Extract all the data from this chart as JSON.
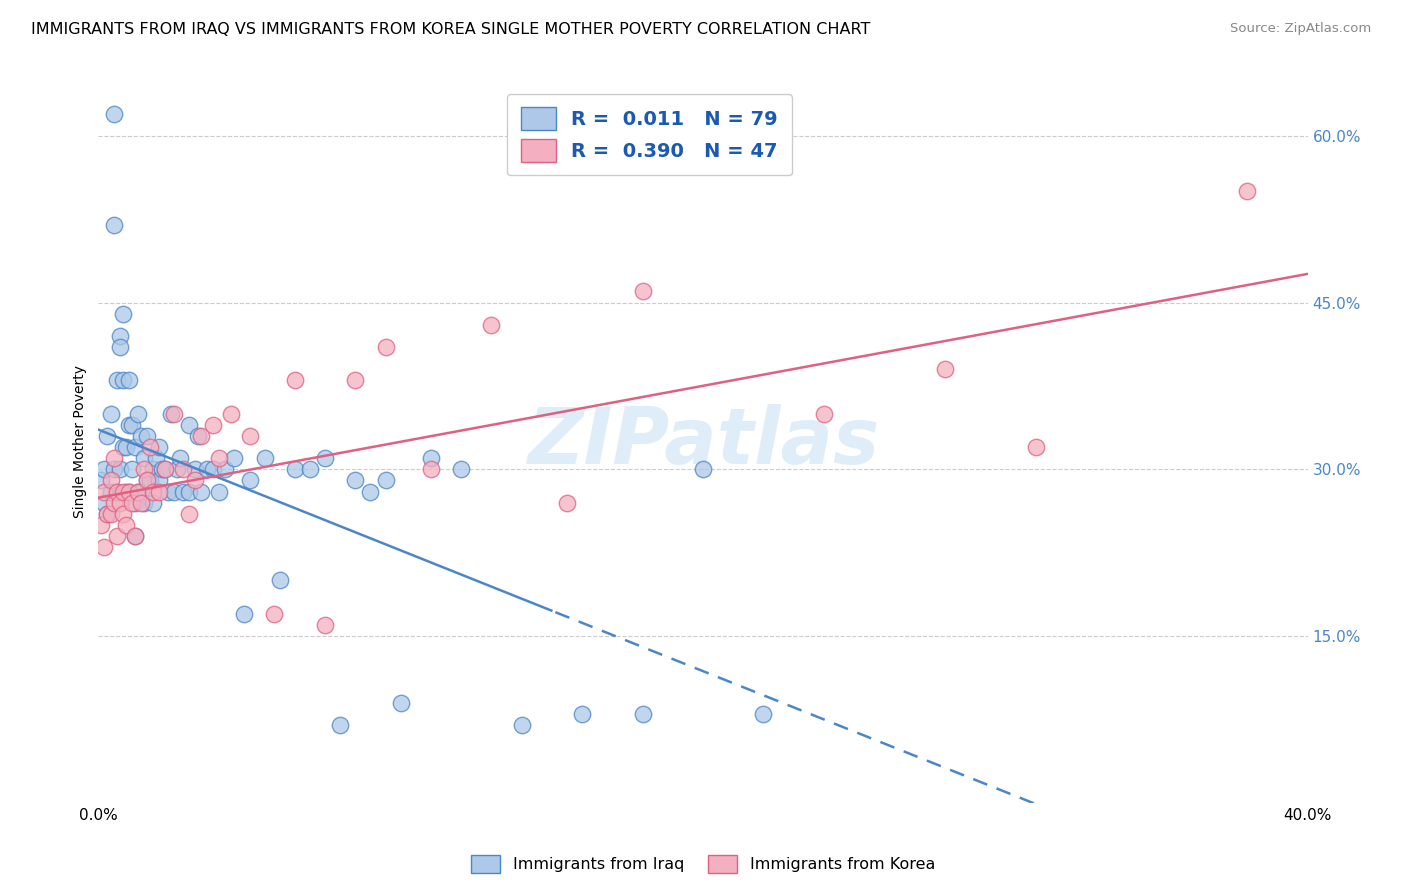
{
  "title": "IMMIGRANTS FROM IRAQ VS IMMIGRANTS FROM KOREA SINGLE MOTHER POVERTY CORRELATION CHART",
  "source": "Source: ZipAtlas.com",
  "ylabel": "Single Mother Poverty",
  "legend_iraq": "Immigrants from Iraq",
  "legend_korea": "Immigrants from Korea",
  "R_iraq": "0.011",
  "N_iraq": "79",
  "R_korea": "0.390",
  "N_korea": "47",
  "color_iraq": "#adc8e8",
  "color_iraq_line": "#4a86c8",
  "color_korea": "#f4b0c0",
  "color_korea_line": "#e06080",
  "color_legend_text": "#1a5ab0",
  "watermark": "ZIPatlas",
  "iraq_x": [
    0.001,
    0.002,
    0.002,
    0.003,
    0.003,
    0.004,
    0.004,
    0.005,
    0.005,
    0.005,
    0.006,
    0.006,
    0.007,
    0.007,
    0.007,
    0.008,
    0.008,
    0.008,
    0.009,
    0.009,
    0.01,
    0.01,
    0.01,
    0.011,
    0.011,
    0.012,
    0.012,
    0.012,
    0.013,
    0.013,
    0.014,
    0.014,
    0.015,
    0.015,
    0.016,
    0.016,
    0.017,
    0.018,
    0.018,
    0.019,
    0.02,
    0.02,
    0.021,
    0.022,
    0.023,
    0.024,
    0.025,
    0.026,
    0.027,
    0.028,
    0.03,
    0.03,
    0.032,
    0.033,
    0.034,
    0.036,
    0.038,
    0.04,
    0.042,
    0.045,
    0.048,
    0.05,
    0.055,
    0.06,
    0.065,
    0.07,
    0.075,
    0.08,
    0.085,
    0.09,
    0.095,
    0.1,
    0.11,
    0.12,
    0.14,
    0.16,
    0.18,
    0.2,
    0.22
  ],
  "iraq_y": [
    0.29,
    0.3,
    0.27,
    0.33,
    0.26,
    0.35,
    0.28,
    0.62,
    0.52,
    0.3,
    0.38,
    0.28,
    0.42,
    0.41,
    0.3,
    0.44,
    0.38,
    0.32,
    0.32,
    0.28,
    0.38,
    0.34,
    0.28,
    0.34,
    0.3,
    0.32,
    0.27,
    0.24,
    0.35,
    0.28,
    0.33,
    0.28,
    0.31,
    0.27,
    0.33,
    0.29,
    0.29,
    0.3,
    0.27,
    0.31,
    0.32,
    0.29,
    0.3,
    0.3,
    0.28,
    0.35,
    0.28,
    0.3,
    0.31,
    0.28,
    0.34,
    0.28,
    0.3,
    0.33,
    0.28,
    0.3,
    0.3,
    0.28,
    0.3,
    0.31,
    0.17,
    0.29,
    0.31,
    0.2,
    0.3,
    0.3,
    0.31,
    0.07,
    0.29,
    0.28,
    0.29,
    0.09,
    0.31,
    0.3,
    0.07,
    0.08,
    0.08,
    0.3,
    0.08
  ],
  "korea_x": [
    0.001,
    0.002,
    0.002,
    0.003,
    0.004,
    0.004,
    0.005,
    0.005,
    0.006,
    0.006,
    0.007,
    0.008,
    0.008,
    0.009,
    0.01,
    0.011,
    0.012,
    0.013,
    0.014,
    0.015,
    0.016,
    0.017,
    0.018,
    0.02,
    0.022,
    0.025,
    0.028,
    0.03,
    0.032,
    0.034,
    0.038,
    0.04,
    0.044,
    0.05,
    0.058,
    0.065,
    0.075,
    0.085,
    0.095,
    0.11,
    0.13,
    0.155,
    0.18,
    0.24,
    0.28,
    0.31,
    0.38
  ],
  "korea_y": [
    0.25,
    0.23,
    0.28,
    0.26,
    0.26,
    0.29,
    0.27,
    0.31,
    0.24,
    0.28,
    0.27,
    0.26,
    0.28,
    0.25,
    0.28,
    0.27,
    0.24,
    0.28,
    0.27,
    0.3,
    0.29,
    0.32,
    0.28,
    0.28,
    0.3,
    0.35,
    0.3,
    0.26,
    0.29,
    0.33,
    0.34,
    0.31,
    0.35,
    0.33,
    0.17,
    0.38,
    0.16,
    0.38,
    0.41,
    0.3,
    0.43,
    0.27,
    0.46,
    0.35,
    0.39,
    0.32,
    0.55
  ],
  "xlim": [
    0.0,
    0.4
  ],
  "ylim": [
    0.0,
    0.65
  ],
  "background_color": "#ffffff",
  "grid_color": "#cccccc"
}
